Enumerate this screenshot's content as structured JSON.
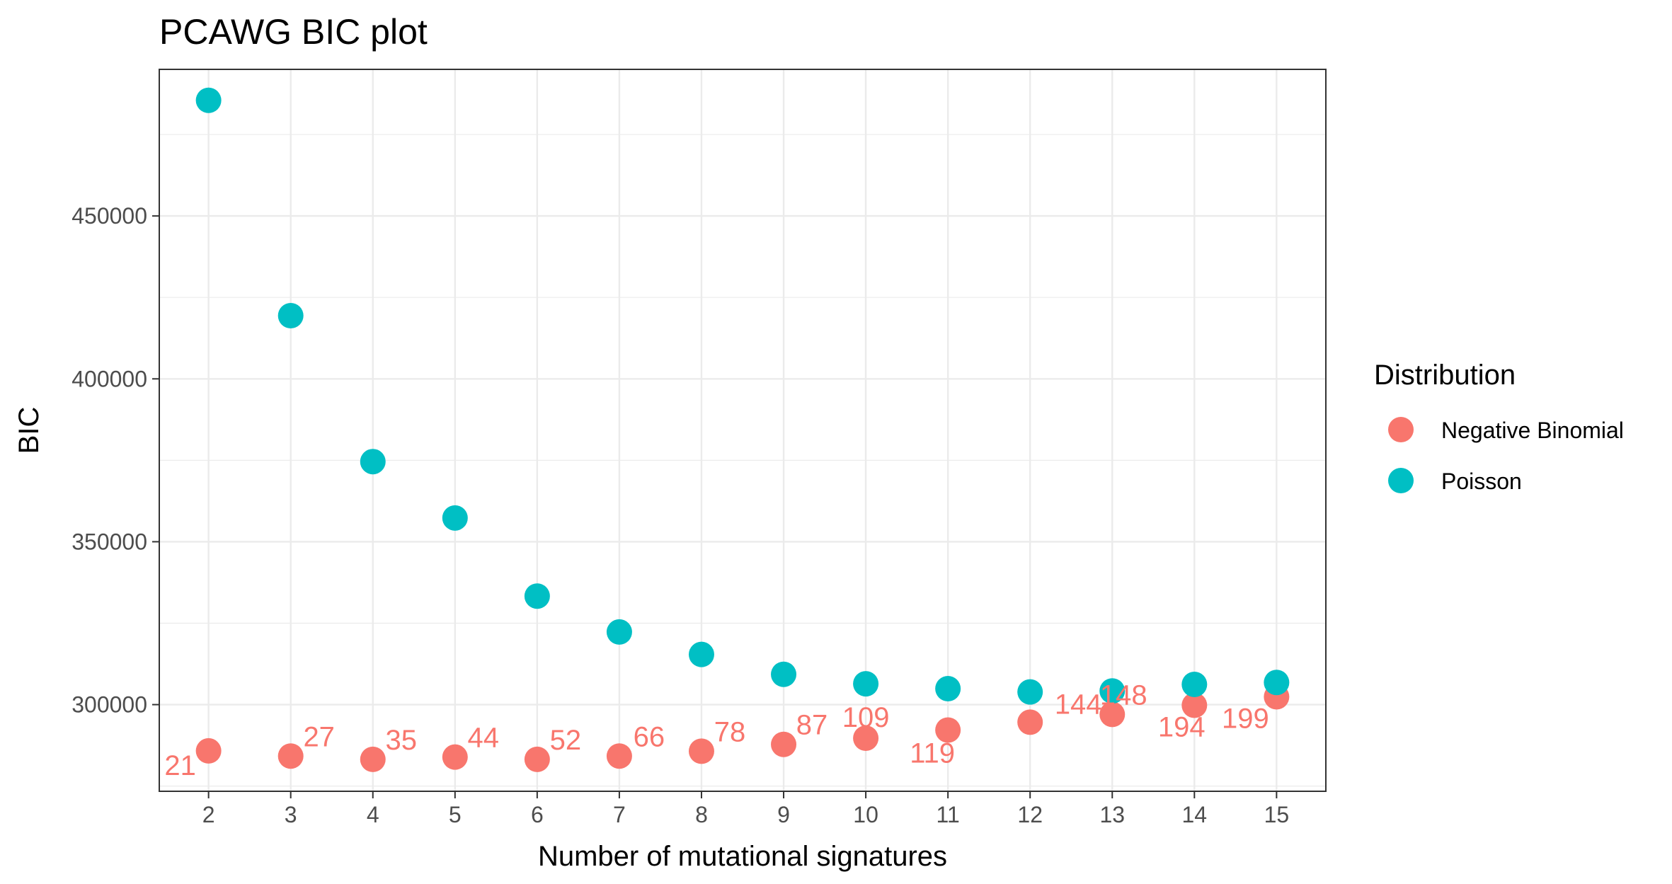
{
  "chart_data": {
    "type": "scatter",
    "title": "PCAWG BIC plot",
    "xlabel": "Number of mutational signatures",
    "ylabel": "BIC",
    "x": [
      2,
      3,
      4,
      5,
      6,
      7,
      8,
      9,
      10,
      11,
      12,
      13,
      14,
      15
    ],
    "xticks": [
      "2",
      "3",
      "4",
      "5",
      "6",
      "7",
      "8",
      "9",
      "10",
      "11",
      "12",
      "13",
      "14",
      "15"
    ],
    "yticks": [
      "300000",
      "350000",
      "400000",
      "450000"
    ],
    "ytick_values": [
      300000,
      350000,
      400000,
      450000
    ],
    "xlim": [
      1.4,
      15.6
    ],
    "ylim": [
      273400,
      495000
    ],
    "grid": true,
    "legend": {
      "title": "Distribution",
      "position": "right"
    },
    "series": [
      {
        "name": "Negative Binomial",
        "color": "#F8766D",
        "values": [
          285800,
          284200,
          283200,
          283900,
          283200,
          284200,
          285700,
          287800,
          289700,
          292200,
          294600,
          297000,
          299800,
          302400
        ],
        "point_labels": [
          "21",
          "27",
          "35",
          "44",
          "52",
          "66",
          "78",
          "87",
          "109",
          "119",
          "144",
          "148",
          "194",
          "199"
        ]
      },
      {
        "name": "Poisson",
        "color": "#00BFC4",
        "values": [
          485500,
          419400,
          374600,
          357300,
          333300,
          322300,
          315400,
          309300,
          306400,
          304900,
          303900,
          304200,
          306200,
          306800
        ]
      }
    ]
  }
}
